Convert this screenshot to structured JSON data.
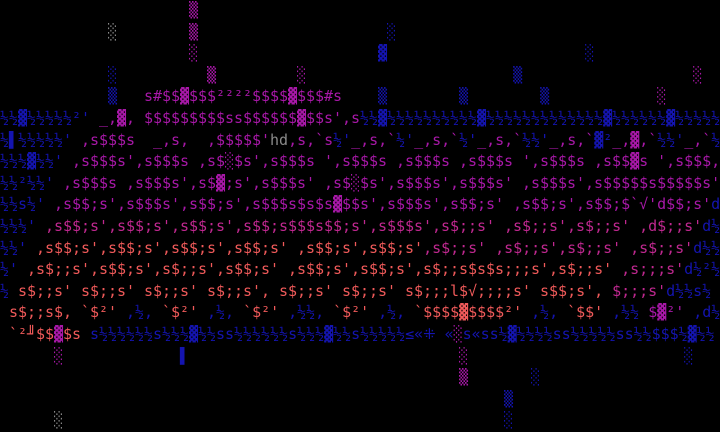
{
  "colors": {
    "b": "#1414b0",
    "m": "#a818a8",
    "p": "#c02890",
    "r": "#f05a5a",
    "g": "#8a8a8a"
  },
  "rows": [
    {
      "segments": [
        [
          "m",
          "                     ▒"
        ]
      ]
    },
    {
      "segments": [
        [
          "g",
          "            ░"
        ],
        [
          "m",
          "        ▒"
        ],
        [
          "b",
          "                     ░"
        ]
      ]
    },
    {
      "segments": [
        [
          "m",
          "                     ░"
        ],
        [
          "b",
          "                    ▓"
        ],
        [
          "b",
          "                      ░"
        ]
      ]
    },
    {
      "segments": [
        [
          "b",
          "            ░"
        ],
        [
          "m",
          "          ▒         ░"
        ],
        [
          "b",
          "                       ▒"
        ],
        [
          "m",
          "                   ░"
        ]
      ]
    },
    {
      "segments": [
        [
          "b",
          "            ▒   "
        ],
        [
          "m",
          "s#$$▓$$$²²²²$$$$▓$$$#s"
        ],
        [
          "b",
          "    ▒        ▒"
        ],
        [
          "b",
          "        ▒     "
        ],
        [
          "m",
          "       ░"
        ]
      ]
    },
    {
      "segments": [
        [
          "b",
          "½½▓½½½½½²'"
        ],
        [
          "m",
          " _,▓, $$$$$$$$$ss$$$$$$▓$$s',s"
        ],
        [
          "b",
          "½½▓½½½½½½½½½½▓½½½½½½½½½½½½½▓½½½½½½▓½½½½½½½½"
        ]
      ]
    },
    {
      "segments": [
        [
          "b",
          "½▌½½½½½'"
        ],
        [
          "m",
          " ,s$$$s  _,s,  ,$$$$$'"
        ],
        [
          "g",
          "hd"
        ],
        [
          "m",
          ",s,`s"
        ],
        [
          "b",
          "½'"
        ],
        [
          "m",
          "_,s,`"
        ],
        [
          "b",
          "½'"
        ],
        [
          "m",
          "_,s,`"
        ],
        [
          "b",
          "½'"
        ],
        [
          "m",
          "_,s,`"
        ],
        [
          "b",
          "½½'"
        ],
        [
          "m",
          "_,s,`"
        ],
        [
          "b",
          "▓²"
        ],
        [
          "m",
          "_,▓,`"
        ],
        [
          "b",
          "½½'"
        ],
        [
          "m",
          "_,`"
        ],
        [
          "b",
          "½"
        ]
      ]
    },
    {
      "segments": [
        [
          "b",
          "½½½▓½½'"
        ],
        [
          "m",
          " ,s$$$s',s$$$s ,s$░$s',s$$$s ',s$$$s ,s$$$s ,s$$$s ',s$$$s ,s$$▓s ',s$$$,"
        ]
      ]
    },
    {
      "segments": [
        [
          "b",
          "½½²½½'"
        ],
        [
          "m",
          " ,s$$$s ,s$$$s',s$▓;s',s$$$s' ,s$░$s',s$$$s',s$$$s' ,s$$$s',s$$$$$s$$$$$s'"
        ]
      ]
    },
    {
      "segments": [
        [
          "b",
          "½½s½'"
        ],
        [
          "m",
          " ,s$$;s',s$$$s',s$$;s',s$$$s$s$s▓$$s',s$$$s',s$$;s' ,s$$;s',s$$;$`√'d$$;s'"
        ],
        [
          "b",
          "d"
        ]
      ]
    },
    {
      "segments": [
        [
          "b",
          "½½½'"
        ],
        [
          "p",
          " ,s$$;s',s$$;s',s$$;s',s$$;s$$$s$$;s',s$$$s',s$;;s' ,s$;;s',s$;;s' ,d$;;s'"
        ],
        [
          "b",
          "d½"
        ]
      ]
    },
    {
      "segments": [
        [
          "b",
          "½½'"
        ],
        [
          "r",
          " ,s$$;s',s$$;s',s$$;s',s$$;s' ,s$$;s',s$$;s'"
        ],
        [
          "p",
          ",s$;;s' ,s$;;s',s$;;s' ,s$;;s'"
        ],
        [
          "b",
          "d½½"
        ]
      ]
    },
    {
      "segments": [
        [
          "b",
          "½'"
        ],
        [
          "r",
          " ,s$;;s',s$$;s',s$;;s',s$$;s' ,s$$;s',s$$;s',s$;;s$s$s;;;s',s$;;s'"
        ],
        [
          "p",
          " ,s;;;s'"
        ],
        [
          "b",
          "d½²½"
        ]
      ]
    },
    {
      "segments": [
        [
          "b",
          "½"
        ],
        [
          "r",
          " s$;;s' s$;;s' s$;;s' s$;;s', s$;;s' s$;;s' s$;;;l$√;;;;s' s$$;s',"
        ],
        [
          "p",
          " $;;;s'"
        ],
        [
          "b",
          "d½½s½"
        ]
      ]
    },
    {
      "segments": [
        [
          "r",
          " s$;;s$, `$²'"
        ],
        [
          "b",
          " ,½,"
        ],
        [
          "r",
          " `$²'"
        ],
        [
          "b",
          " ,½,"
        ],
        [
          "r",
          " `$²'"
        ],
        [
          "b",
          " ,½½,"
        ],
        [
          "r",
          " `$²'"
        ],
        [
          "b",
          " ,½,"
        ],
        [
          "r",
          " `$$$$▓$$$$²'"
        ],
        [
          "b",
          " ,½,"
        ],
        [
          "r",
          " `$$'"
        ],
        [
          "b",
          " ,½½"
        ],
        [
          "m",
          " $▓²'"
        ],
        [
          "b",
          " ,d½▓½½½"
        ]
      ]
    },
    {
      "segments": [
        [
          "r",
          " `²╜$$"
        ],
        [
          "m",
          "▓"
        ],
        [
          "r",
          "$s"
        ],
        [
          "b",
          " s½½½½½½s½½½▓½½ss½½½½½½s½½½▓½½s½½½½½≤«⁜ «"
        ],
        [
          "m",
          "░"
        ],
        [
          "b",
          "s«ss½▓½½½½ss½½½½½ss½½$$$½▓½½"
        ]
      ]
    },
    {
      "segments": [
        [
          "m",
          "      ░"
        ],
        [
          "b",
          "             ▌"
        ],
        [
          "m",
          "                              ░"
        ],
        [
          "b",
          "                        ░"
        ]
      ]
    },
    {
      "segments": [
        [
          "m",
          "                                                   ▒"
        ],
        [
          "b",
          "       ░"
        ]
      ]
    },
    {
      "segments": [
        [
          "b",
          "                                                        ▒"
        ]
      ]
    },
    {
      "segments": [
        [
          "g",
          "      ░"
        ],
        [
          "b",
          "                                                 ░"
        ]
      ]
    }
  ]
}
